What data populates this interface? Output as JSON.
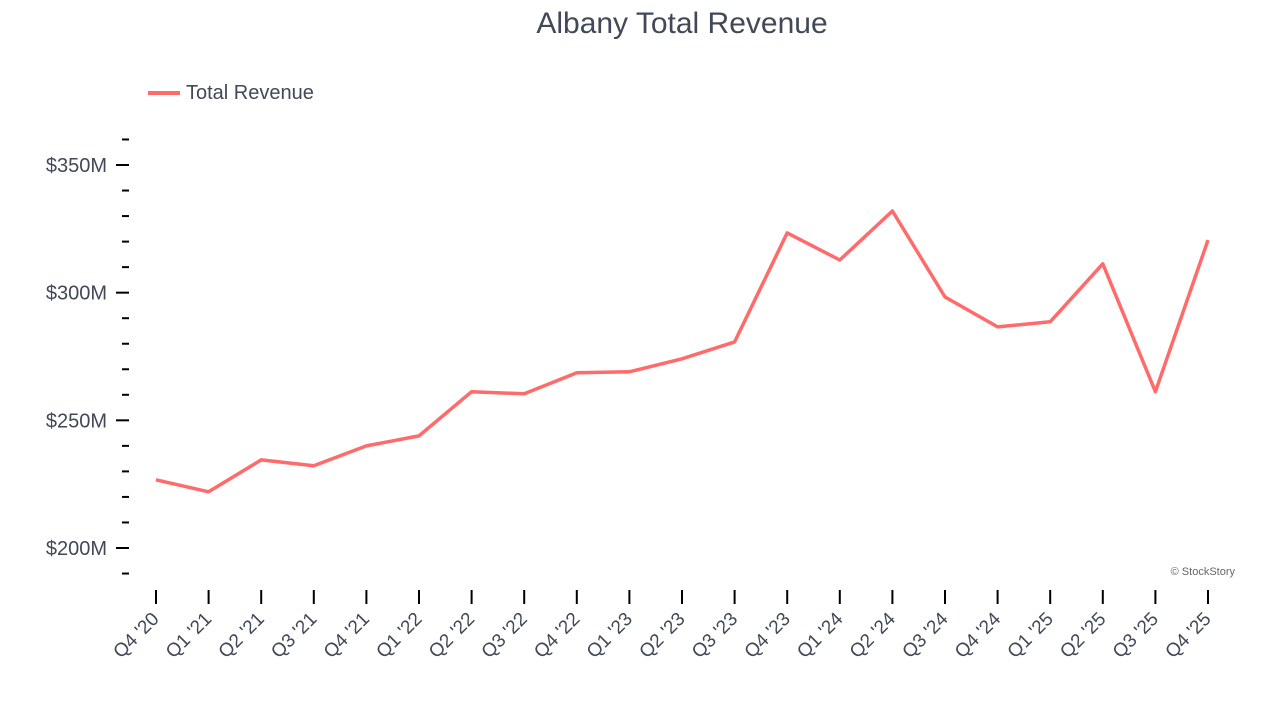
{
  "chart_data": {
    "type": "line",
    "title": "Albany Total Revenue",
    "xlabel": "",
    "ylabel": "",
    "categories": [
      "Q4 '20",
      "Q1 '21",
      "Q2 '21",
      "Q3 '21",
      "Q4 '21",
      "Q1 '22",
      "Q2 '22",
      "Q3 '22",
      "Q4 '22",
      "Q1 '23",
      "Q2 '23",
      "Q3 '23",
      "Q4 '23",
      "Q1 '24",
      "Q2 '24",
      "Q3 '24",
      "Q4 '24",
      "Q1 '25",
      "Q2 '25",
      "Q3 '25",
      "Q4 '25"
    ],
    "series": [
      {
        "name": "Total Revenue",
        "color": "#ff6b6b",
        "values": [
          226.7,
          222.0,
          234.5,
          232.2,
          240.0,
          243.9,
          261.2,
          260.4,
          268.6,
          269.0,
          274.1,
          280.7,
          323.4,
          312.8,
          332.0,
          298.3,
          286.6,
          288.6,
          311.3,
          261.2,
          320.6
        ]
      }
    ],
    "yticks": [
      200,
      250,
      300,
      350
    ],
    "ytick_labels": [
      "$200M",
      "$250M",
      "$300M",
      "$350M"
    ],
    "ylim": [
      190,
      360
    ],
    "minor_tick_step": 10,
    "unit": "$M",
    "grid": false,
    "legend": "top-left"
  },
  "watermark": "© StockStory"
}
